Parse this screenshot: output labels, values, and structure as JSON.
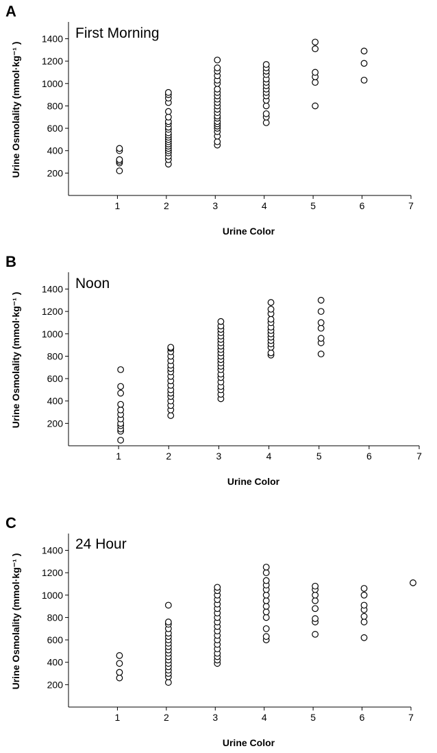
{
  "chart_data": [
    {
      "panel": "A",
      "type": "scatter",
      "title": "First Morning",
      "xlabel": "Urine Color",
      "ylabel": "Urine Osmolality (mmol·kg⁻¹ )",
      "xlim": [
        0,
        7
      ],
      "ylim": [
        0,
        1550
      ],
      "xticks": [
        1,
        2,
        3,
        4,
        5,
        6,
        7
      ],
      "yticks": [
        200,
        400,
        600,
        800,
        1000,
        1200,
        1400
      ],
      "series": [
        {
          "points": [
            [
              1,
              220
            ],
            [
              1,
              290
            ],
            [
              1,
              305
            ],
            [
              1,
              320
            ],
            [
              1,
              400
            ],
            [
              1,
              420
            ],
            [
              2,
              280
            ],
            [
              2,
              320
            ],
            [
              2,
              350
            ],
            [
              2,
              380
            ],
            [
              2,
              400
            ],
            [
              2,
              420
            ],
            [
              2,
              440
            ],
            [
              2,
              460
            ],
            [
              2,
              480
            ],
            [
              2,
              500
            ],
            [
              2,
              520
            ],
            [
              2,
              540
            ],
            [
              2,
              560
            ],
            [
              2,
              590
            ],
            [
              2,
              610
            ],
            [
              2,
              640
            ],
            [
              2,
              660
            ],
            [
              2,
              700
            ],
            [
              2,
              750
            ],
            [
              2,
              830
            ],
            [
              2,
              870
            ],
            [
              2,
              900
            ],
            [
              2,
              920
            ],
            [
              3,
              450
            ],
            [
              3,
              480
            ],
            [
              3,
              530
            ],
            [
              3,
              570
            ],
            [
              3,
              600
            ],
            [
              3,
              620
            ],
            [
              3,
              640
            ],
            [
              3,
              660
            ],
            [
              3,
              690
            ],
            [
              3,
              710
            ],
            [
              3,
              740
            ],
            [
              3,
              770
            ],
            [
              3,
              800
            ],
            [
              3,
              830
            ],
            [
              3,
              860
            ],
            [
              3,
              890
            ],
            [
              3,
              920
            ],
            [
              3,
              950
            ],
            [
              3,
              1000
            ],
            [
              3,
              1030
            ],
            [
              3,
              1070
            ],
            [
              3,
              1110
            ],
            [
              3,
              1140
            ],
            [
              3,
              1210
            ],
            [
              4,
              650
            ],
            [
              4,
              700
            ],
            [
              4,
              730
            ],
            [
              4,
              800
            ],
            [
              4,
              850
            ],
            [
              4,
              890
            ],
            [
              4,
              920
            ],
            [
              4,
              950
            ],
            [
              4,
              980
            ],
            [
              4,
              1010
            ],
            [
              4,
              1040
            ],
            [
              4,
              1080
            ],
            [
              4,
              1110
            ],
            [
              4,
              1140
            ],
            [
              4,
              1170
            ],
            [
              5,
              800
            ],
            [
              5,
              1010
            ],
            [
              5,
              1060
            ],
            [
              5,
              1100
            ],
            [
              5,
              1310
            ],
            [
              5,
              1370
            ],
            [
              6,
              1030
            ],
            [
              6,
              1180
            ],
            [
              6,
              1290
            ]
          ]
        }
      ]
    },
    {
      "panel": "B",
      "type": "scatter",
      "title": "Noon",
      "xlabel": "Urine Color",
      "ylabel": "Urine Osmolality (mmol·kg⁻¹ )",
      "xlim": [
        0,
        7
      ],
      "ylim": [
        0,
        1550
      ],
      "xticks": [
        1,
        2,
        3,
        4,
        5,
        6,
        7
      ],
      "yticks": [
        200,
        400,
        600,
        800,
        1000,
        1200,
        1400
      ],
      "series": [
        {
          "points": [
            [
              1,
              50
            ],
            [
              1,
              130
            ],
            [
              1,
              150
            ],
            [
              1,
              180
            ],
            [
              1,
              200
            ],
            [
              1,
              240
            ],
            [
              1,
              280
            ],
            [
              1,
              320
            ],
            [
              1,
              370
            ],
            [
              1,
              470
            ],
            [
              1,
              530
            ],
            [
              1,
              680
            ],
            [
              2,
              270
            ],
            [
              2,
              320
            ],
            [
              2,
              360
            ],
            [
              2,
              400
            ],
            [
              2,
              440
            ],
            [
              2,
              470
            ],
            [
              2,
              500
            ],
            [
              2,
              540
            ],
            [
              2,
              580
            ],
            [
              2,
              620
            ],
            [
              2,
              660
            ],
            [
              2,
              690
            ],
            [
              2,
              720
            ],
            [
              2,
              760
            ],
            [
              2,
              800
            ],
            [
              2,
              840
            ],
            [
              2,
              870
            ],
            [
              2,
              880
            ],
            [
              3,
              420
            ],
            [
              3,
              460
            ],
            [
              3,
              500
            ],
            [
              3,
              530
            ],
            [
              3,
              570
            ],
            [
              3,
              610
            ],
            [
              3,
              640
            ],
            [
              3,
              680
            ],
            [
              3,
              710
            ],
            [
              3,
              740
            ],
            [
              3,
              770
            ],
            [
              3,
              800
            ],
            [
              3,
              830
            ],
            [
              3,
              860
            ],
            [
              3,
              890
            ],
            [
              3,
              920
            ],
            [
              3,
              950
            ],
            [
              3,
              980
            ],
            [
              3,
              1010
            ],
            [
              3,
              1040
            ],
            [
              3,
              1070
            ],
            [
              3,
              1110
            ],
            [
              4,
              810
            ],
            [
              4,
              830
            ],
            [
              4,
              880
            ],
            [
              4,
              910
            ],
            [
              4,
              940
            ],
            [
              4,
              970
            ],
            [
              4,
              1000
            ],
            [
              4,
              1030
            ],
            [
              4,
              1060
            ],
            [
              4,
              1100
            ],
            [
              4,
              1130
            ],
            [
              4,
              1180
            ],
            [
              4,
              1220
            ],
            [
              4,
              1280
            ],
            [
              5,
              820
            ],
            [
              5,
              920
            ],
            [
              5,
              960
            ],
            [
              5,
              1050
            ],
            [
              5,
              1100
            ],
            [
              5,
              1200
            ],
            [
              5,
              1300
            ]
          ]
        }
      ]
    },
    {
      "panel": "C",
      "type": "scatter",
      "title": "24 Hour",
      "xlabel": "Urine Color",
      "ylabel": "Urine Osmolality (mmol·kg⁻¹ )",
      "xlim": [
        0,
        7
      ],
      "ylim": [
        0,
        1550
      ],
      "xticks": [
        1,
        2,
        3,
        4,
        5,
        6,
        7
      ],
      "yticks": [
        200,
        400,
        600,
        800,
        1000,
        1200,
        1400
      ],
      "series": [
        {
          "points": [
            [
              1,
              260
            ],
            [
              1,
              310
            ],
            [
              1,
              390
            ],
            [
              1,
              460
            ],
            [
              2,
              220
            ],
            [
              2,
              270
            ],
            [
              2,
              300
            ],
            [
              2,
              330
            ],
            [
              2,
              360
            ],
            [
              2,
              390
            ],
            [
              2,
              420
            ],
            [
              2,
              450
            ],
            [
              2,
              480
            ],
            [
              2,
              510
            ],
            [
              2,
              540
            ],
            [
              2,
              570
            ],
            [
              2,
              600
            ],
            [
              2,
              630
            ],
            [
              2,
              660
            ],
            [
              2,
              700
            ],
            [
              2,
              740
            ],
            [
              2,
              760
            ],
            [
              2,
              910
            ],
            [
              3,
              390
            ],
            [
              3,
              420
            ],
            [
              3,
              450
            ],
            [
              3,
              480
            ],
            [
              3,
              520
            ],
            [
              3,
              560
            ],
            [
              3,
              600
            ],
            [
              3,
              640
            ],
            [
              3,
              680
            ],
            [
              3,
              720
            ],
            [
              3,
              760
            ],
            [
              3,
              800
            ],
            [
              3,
              840
            ],
            [
              3,
              880
            ],
            [
              3,
              920
            ],
            [
              3,
              960
            ],
            [
              3,
              1000
            ],
            [
              3,
              1040
            ],
            [
              3,
              1070
            ],
            [
              4,
              600
            ],
            [
              4,
              630
            ],
            [
              4,
              700
            ],
            [
              4,
              800
            ],
            [
              4,
              850
            ],
            [
              4,
              900
            ],
            [
              4,
              950
            ],
            [
              4,
              1000
            ],
            [
              4,
              1050
            ],
            [
              4,
              1090
            ],
            [
              4,
              1130
            ],
            [
              4,
              1200
            ],
            [
              4,
              1250
            ],
            [
              5,
              650
            ],
            [
              5,
              760
            ],
            [
              5,
              790
            ],
            [
              5,
              880
            ],
            [
              5,
              950
            ],
            [
              5,
              1000
            ],
            [
              5,
              1050
            ],
            [
              5,
              1080
            ],
            [
              6,
              620
            ],
            [
              6,
              760
            ],
            [
              6,
              810
            ],
            [
              6,
              870
            ],
            [
              6,
              910
            ],
            [
              6,
              1000
            ],
            [
              6,
              1060
            ],
            [
              7,
              1110
            ]
          ]
        }
      ]
    }
  ]
}
